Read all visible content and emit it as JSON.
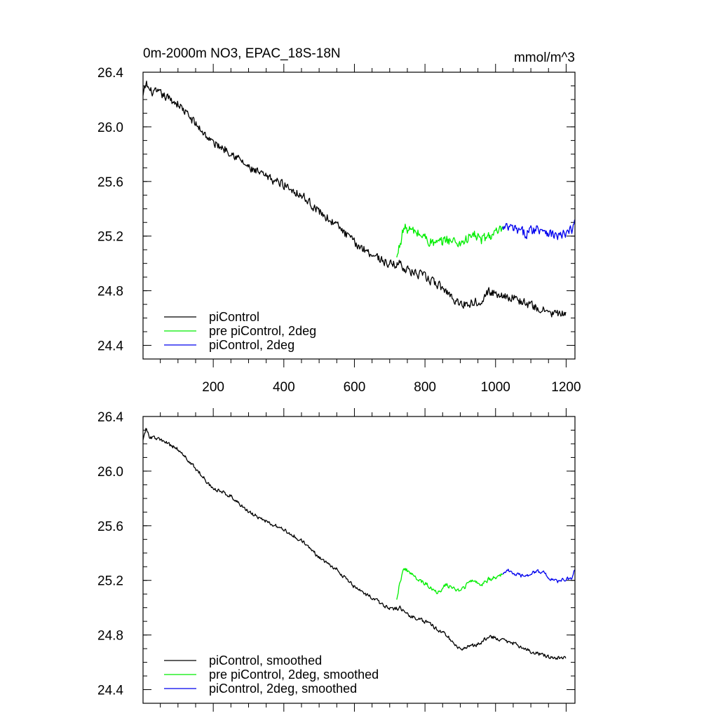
{
  "chart_data": [
    {
      "type": "line",
      "title": "0m-2000m NO3, EPAC_18S-18N",
      "units": "mmol/m^3",
      "xlabel": "",
      "ylabel": "",
      "xlim": [
        1,
        1225
      ],
      "ylim": [
        24.3,
        26.4
      ],
      "xticks": [
        200,
        400,
        600,
        800,
        1000,
        1200
      ],
      "xtick_labels": [
        "200",
        "400",
        "600",
        "800",
        "1000",
        "1200"
      ],
      "yticks": [
        24.4,
        24.8,
        25.2,
        25.6,
        26.0,
        26.4
      ],
      "ytick_labels": [
        "24.4",
        "24.8",
        "25.2",
        "25.6",
        "26.0",
        "26.4"
      ],
      "legend_position": "bottom-left",
      "series": [
        {
          "name": "piControl",
          "color": "#000000",
          "x": [
            1,
            10,
            20,
            50,
            100,
            150,
            200,
            250,
            300,
            350,
            400,
            450,
            500,
            550,
            600,
            650,
            700,
            730,
            750,
            800,
            850,
            900,
            950,
            980,
            1000,
            1050,
            1100,
            1150,
            1200
          ],
          "values": [
            26.22,
            26.32,
            26.26,
            26.24,
            26.17,
            26.02,
            25.88,
            25.82,
            25.7,
            25.63,
            25.58,
            25.5,
            25.38,
            25.28,
            25.15,
            25.07,
            24.99,
            25.0,
            24.95,
            24.9,
            24.82,
            24.7,
            24.72,
            24.79,
            24.78,
            24.75,
            24.69,
            24.64,
            24.62
          ],
          "noise": 0.045
        },
        {
          "name": "pre piControl, 2deg",
          "color": "#00ee00",
          "x": [
            720,
            730,
            740,
            760,
            780,
            800,
            820,
            840,
            860,
            880,
            900,
            920,
            940,
            960,
            980,
            1000,
            1020
          ],
          "values": [
            25.03,
            25.16,
            25.26,
            25.24,
            25.22,
            25.19,
            25.15,
            25.14,
            25.18,
            25.16,
            25.15,
            25.18,
            25.21,
            25.17,
            25.2,
            25.22,
            25.24
          ],
          "noise": 0.055
        },
        {
          "name": "piControl, 2deg",
          "color": "#0000ee",
          "x": [
            1020,
            1040,
            1060,
            1080,
            1100,
            1120,
            1140,
            1160,
            1180,
            1200,
            1215,
            1225
          ],
          "values": [
            25.25,
            25.26,
            25.24,
            25.22,
            25.24,
            25.26,
            25.25,
            25.21,
            25.2,
            25.21,
            25.24,
            25.3
          ],
          "noise": 0.055
        }
      ]
    },
    {
      "type": "line",
      "title": "",
      "xlabel": "",
      "ylabel": "",
      "xlim": [
        1,
        1225
      ],
      "ylim": [
        24.3,
        26.4
      ],
      "xticks": [
        200,
        400,
        600,
        800,
        1000,
        1200
      ],
      "yticks": [
        24.4,
        24.8,
        25.2,
        25.6,
        26.0,
        26.4
      ],
      "ytick_labels": [
        "24.4",
        "24.8",
        "25.2",
        "25.6",
        "26.0",
        "26.4"
      ],
      "legend_position": "bottom-left",
      "series": [
        {
          "name": "piControl, smoothed",
          "color": "#000000",
          "x": [
            1,
            10,
            20,
            50,
            100,
            150,
            200,
            250,
            300,
            350,
            400,
            450,
            500,
            550,
            600,
            650,
            700,
            730,
            750,
            800,
            850,
            900,
            950,
            980,
            1000,
            1050,
            1100,
            1150,
            1200
          ],
          "values": [
            26.24,
            26.31,
            26.25,
            26.23,
            26.16,
            26.02,
            25.87,
            25.82,
            25.7,
            25.63,
            25.57,
            25.49,
            25.37,
            25.28,
            25.15,
            25.07,
            24.99,
            25.0,
            24.95,
            24.9,
            24.82,
            24.7,
            24.73,
            24.79,
            24.78,
            24.74,
            24.68,
            24.64,
            24.63
          ],
          "noise": 0.02
        },
        {
          "name": "pre piControl, 2deg, smoothed",
          "color": "#00ee00",
          "x": [
            720,
            730,
            740,
            760,
            780,
            800,
            820,
            840,
            860,
            880,
            900,
            920,
            940,
            960,
            980,
            1000,
            1020
          ],
          "values": [
            25.07,
            25.2,
            25.29,
            25.25,
            25.2,
            25.18,
            25.14,
            25.11,
            25.17,
            25.14,
            25.12,
            25.17,
            25.21,
            25.16,
            25.21,
            25.22,
            25.24
          ],
          "noise": 0.022
        },
        {
          "name": "piControl, 2deg, smoothed",
          "color": "#0000ee",
          "x": [
            1020,
            1040,
            1060,
            1080,
            1100,
            1120,
            1140,
            1160,
            1180,
            1200,
            1215,
            1225
          ],
          "values": [
            25.26,
            25.27,
            25.24,
            25.23,
            25.25,
            25.27,
            25.25,
            25.2,
            25.19,
            25.21,
            25.22,
            25.28
          ],
          "noise": 0.02
        }
      ]
    }
  ]
}
